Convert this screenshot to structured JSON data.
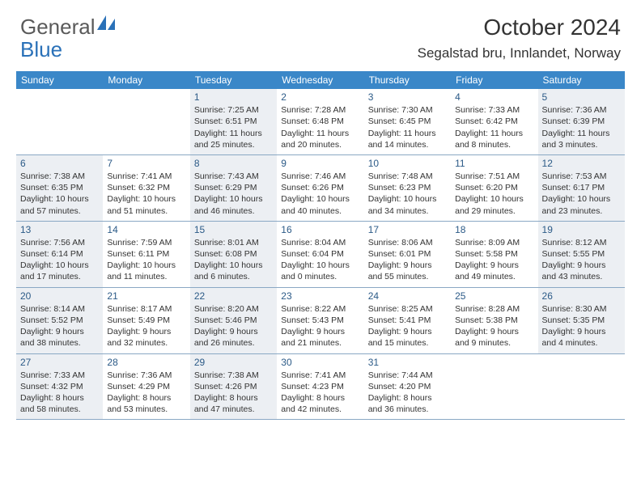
{
  "logo": {
    "text1": "General",
    "text2": "Blue"
  },
  "title": "October 2024",
  "location": "Segalstad bru, Innlandet, Norway",
  "colors": {
    "header_bg": "#3a87c8",
    "header_text": "#ffffff",
    "shade_bg": "#eceff3",
    "daynum": "#2b5a87",
    "border": "#8aa8c4",
    "logo_gray": "#5a5a5a",
    "logo_blue": "#2a71b8"
  },
  "dayNames": [
    "Sunday",
    "Monday",
    "Tuesday",
    "Wednesday",
    "Thursday",
    "Friday",
    "Saturday"
  ],
  "weeks": [
    [
      {
        "day": "",
        "shade": false
      },
      {
        "day": "",
        "shade": false
      },
      {
        "day": "1",
        "shade": true,
        "sunrise": "Sunrise: 7:25 AM",
        "sunset": "Sunset: 6:51 PM",
        "daylight1": "Daylight: 11 hours",
        "daylight2": "and 25 minutes."
      },
      {
        "day": "2",
        "shade": false,
        "sunrise": "Sunrise: 7:28 AM",
        "sunset": "Sunset: 6:48 PM",
        "daylight1": "Daylight: 11 hours",
        "daylight2": "and 20 minutes."
      },
      {
        "day": "3",
        "shade": false,
        "sunrise": "Sunrise: 7:30 AM",
        "sunset": "Sunset: 6:45 PM",
        "daylight1": "Daylight: 11 hours",
        "daylight2": "and 14 minutes."
      },
      {
        "day": "4",
        "shade": false,
        "sunrise": "Sunrise: 7:33 AM",
        "sunset": "Sunset: 6:42 PM",
        "daylight1": "Daylight: 11 hours",
        "daylight2": "and 8 minutes."
      },
      {
        "day": "5",
        "shade": true,
        "sunrise": "Sunrise: 7:36 AM",
        "sunset": "Sunset: 6:39 PM",
        "daylight1": "Daylight: 11 hours",
        "daylight2": "and 3 minutes."
      }
    ],
    [
      {
        "day": "6",
        "shade": true,
        "sunrise": "Sunrise: 7:38 AM",
        "sunset": "Sunset: 6:35 PM",
        "daylight1": "Daylight: 10 hours",
        "daylight2": "and 57 minutes."
      },
      {
        "day": "7",
        "shade": false,
        "sunrise": "Sunrise: 7:41 AM",
        "sunset": "Sunset: 6:32 PM",
        "daylight1": "Daylight: 10 hours",
        "daylight2": "and 51 minutes."
      },
      {
        "day": "8",
        "shade": true,
        "sunrise": "Sunrise: 7:43 AM",
        "sunset": "Sunset: 6:29 PM",
        "daylight1": "Daylight: 10 hours",
        "daylight2": "and 46 minutes."
      },
      {
        "day": "9",
        "shade": false,
        "sunrise": "Sunrise: 7:46 AM",
        "sunset": "Sunset: 6:26 PM",
        "daylight1": "Daylight: 10 hours",
        "daylight2": "and 40 minutes."
      },
      {
        "day": "10",
        "shade": false,
        "sunrise": "Sunrise: 7:48 AM",
        "sunset": "Sunset: 6:23 PM",
        "daylight1": "Daylight: 10 hours",
        "daylight2": "and 34 minutes."
      },
      {
        "day": "11",
        "shade": false,
        "sunrise": "Sunrise: 7:51 AM",
        "sunset": "Sunset: 6:20 PM",
        "daylight1": "Daylight: 10 hours",
        "daylight2": "and 29 minutes."
      },
      {
        "day": "12",
        "shade": true,
        "sunrise": "Sunrise: 7:53 AM",
        "sunset": "Sunset: 6:17 PM",
        "daylight1": "Daylight: 10 hours",
        "daylight2": "and 23 minutes."
      }
    ],
    [
      {
        "day": "13",
        "shade": true,
        "sunrise": "Sunrise: 7:56 AM",
        "sunset": "Sunset: 6:14 PM",
        "daylight1": "Daylight: 10 hours",
        "daylight2": "and 17 minutes."
      },
      {
        "day": "14",
        "shade": false,
        "sunrise": "Sunrise: 7:59 AM",
        "sunset": "Sunset: 6:11 PM",
        "daylight1": "Daylight: 10 hours",
        "daylight2": "and 11 minutes."
      },
      {
        "day": "15",
        "shade": true,
        "sunrise": "Sunrise: 8:01 AM",
        "sunset": "Sunset: 6:08 PM",
        "daylight1": "Daylight: 10 hours",
        "daylight2": "and 6 minutes."
      },
      {
        "day": "16",
        "shade": false,
        "sunrise": "Sunrise: 8:04 AM",
        "sunset": "Sunset: 6:04 PM",
        "daylight1": "Daylight: 10 hours",
        "daylight2": "and 0 minutes."
      },
      {
        "day": "17",
        "shade": false,
        "sunrise": "Sunrise: 8:06 AM",
        "sunset": "Sunset: 6:01 PM",
        "daylight1": "Daylight: 9 hours",
        "daylight2": "and 55 minutes."
      },
      {
        "day": "18",
        "shade": false,
        "sunrise": "Sunrise: 8:09 AM",
        "sunset": "Sunset: 5:58 PM",
        "daylight1": "Daylight: 9 hours",
        "daylight2": "and 49 minutes."
      },
      {
        "day": "19",
        "shade": true,
        "sunrise": "Sunrise: 8:12 AM",
        "sunset": "Sunset: 5:55 PM",
        "daylight1": "Daylight: 9 hours",
        "daylight2": "and 43 minutes."
      }
    ],
    [
      {
        "day": "20",
        "shade": true,
        "sunrise": "Sunrise: 8:14 AM",
        "sunset": "Sunset: 5:52 PM",
        "daylight1": "Daylight: 9 hours",
        "daylight2": "and 38 minutes."
      },
      {
        "day": "21",
        "shade": false,
        "sunrise": "Sunrise: 8:17 AM",
        "sunset": "Sunset: 5:49 PM",
        "daylight1": "Daylight: 9 hours",
        "daylight2": "and 32 minutes."
      },
      {
        "day": "22",
        "shade": true,
        "sunrise": "Sunrise: 8:20 AM",
        "sunset": "Sunset: 5:46 PM",
        "daylight1": "Daylight: 9 hours",
        "daylight2": "and 26 minutes."
      },
      {
        "day": "23",
        "shade": false,
        "sunrise": "Sunrise: 8:22 AM",
        "sunset": "Sunset: 5:43 PM",
        "daylight1": "Daylight: 9 hours",
        "daylight2": "and 21 minutes."
      },
      {
        "day": "24",
        "shade": false,
        "sunrise": "Sunrise: 8:25 AM",
        "sunset": "Sunset: 5:41 PM",
        "daylight1": "Daylight: 9 hours",
        "daylight2": "and 15 minutes."
      },
      {
        "day": "25",
        "shade": false,
        "sunrise": "Sunrise: 8:28 AM",
        "sunset": "Sunset: 5:38 PM",
        "daylight1": "Daylight: 9 hours",
        "daylight2": "and 9 minutes."
      },
      {
        "day": "26",
        "shade": true,
        "sunrise": "Sunrise: 8:30 AM",
        "sunset": "Sunset: 5:35 PM",
        "daylight1": "Daylight: 9 hours",
        "daylight2": "and 4 minutes."
      }
    ],
    [
      {
        "day": "27",
        "shade": true,
        "sunrise": "Sunrise: 7:33 AM",
        "sunset": "Sunset: 4:32 PM",
        "daylight1": "Daylight: 8 hours",
        "daylight2": "and 58 minutes."
      },
      {
        "day": "28",
        "shade": false,
        "sunrise": "Sunrise: 7:36 AM",
        "sunset": "Sunset: 4:29 PM",
        "daylight1": "Daylight: 8 hours",
        "daylight2": "and 53 minutes."
      },
      {
        "day": "29",
        "shade": true,
        "sunrise": "Sunrise: 7:38 AM",
        "sunset": "Sunset: 4:26 PM",
        "daylight1": "Daylight: 8 hours",
        "daylight2": "and 47 minutes."
      },
      {
        "day": "30",
        "shade": false,
        "sunrise": "Sunrise: 7:41 AM",
        "sunset": "Sunset: 4:23 PM",
        "daylight1": "Daylight: 8 hours",
        "daylight2": "and 42 minutes."
      },
      {
        "day": "31",
        "shade": false,
        "sunrise": "Sunrise: 7:44 AM",
        "sunset": "Sunset: 4:20 PM",
        "daylight1": "Daylight: 8 hours",
        "daylight2": "and 36 minutes."
      },
      {
        "day": "",
        "shade": false
      },
      {
        "day": "",
        "shade": false
      }
    ]
  ]
}
